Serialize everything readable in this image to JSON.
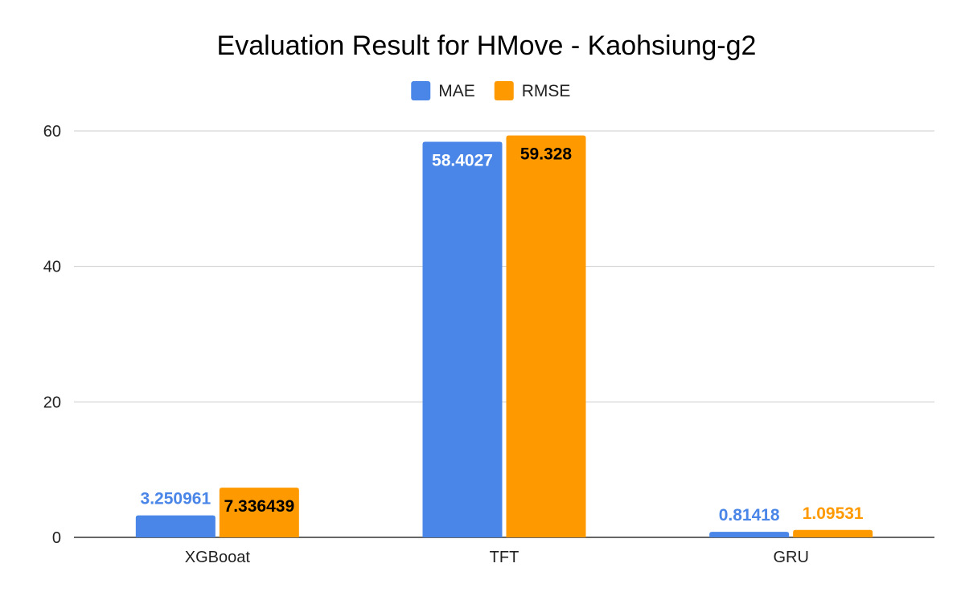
{
  "chart_data": {
    "type": "bar",
    "title": "Evaluation Result for HMove - Kaohsiung-g2",
    "xlabel": "",
    "ylabel": "",
    "categories": [
      "XGBooat",
      "TFT",
      "GRU"
    ],
    "series": [
      {
        "name": "MAE",
        "color": "#4a86e8",
        "values": [
          3.250961,
          58.4027,
          0.81418
        ],
        "labels": [
          "3.250961",
          "58.4027",
          "0.81418"
        ]
      },
      {
        "name": "RMSE",
        "color": "#ff9900",
        "values": [
          7.336439,
          59.328,
          1.09531
        ],
        "labels": [
          "7.336439",
          "59.328",
          "1.09531"
        ]
      }
    ],
    "ylim": [
      0,
      60
    ],
    "yticks": [
      "0",
      "20",
      "40",
      "60"
    ],
    "grid": true,
    "legend": "top-center"
  }
}
